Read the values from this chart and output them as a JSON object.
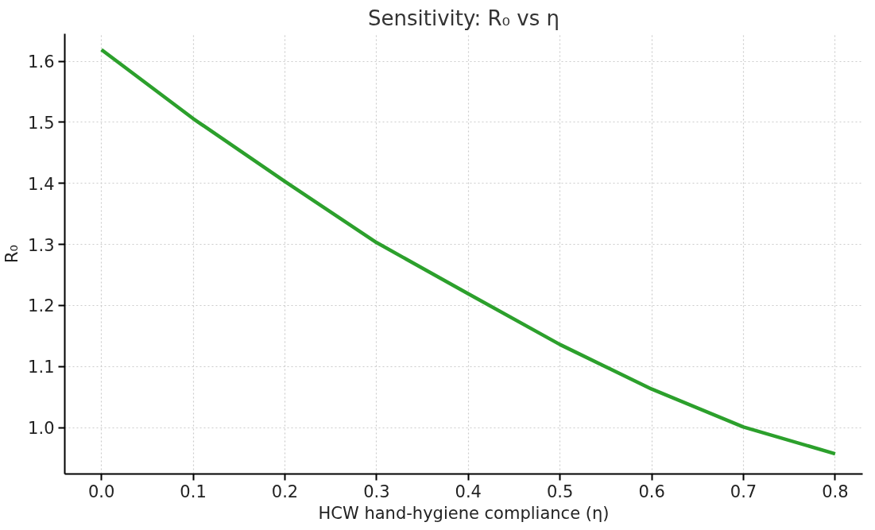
{
  "chart_data": {
    "type": "line",
    "title": "Sensitivity: R₀ vs η",
    "xlabel": "HCW hand-hygiene compliance (η)",
    "ylabel": "R₀",
    "x": [
      0.0,
      0.1,
      0.2,
      0.3,
      0.4,
      0.5,
      0.6,
      0.7,
      0.8
    ],
    "series": [
      {
        "color": "#2ca02c",
        "values": [
          1.619,
          1.506,
          1.403,
          1.303,
          1.219,
          1.136,
          1.063,
          1.001,
          0.957
        ]
      }
    ],
    "xlim": [
      -0.04,
      0.83
    ],
    "ylim": [
      0.924,
      1.645
    ],
    "xticks": [
      {
        "value": 0.0,
        "label": "0.0"
      },
      0.1,
      0.2,
      0.3,
      0.4,
      0.5,
      0.6,
      0.7,
      0.8
    ],
    "yticks": [
      {
        "value": 1.0,
        "label": "1.0"
      },
      1.1,
      1.2,
      1.3,
      1.4,
      1.5,
      1.6
    ],
    "grid": true,
    "marker": "none",
    "line_style": "solid"
  }
}
